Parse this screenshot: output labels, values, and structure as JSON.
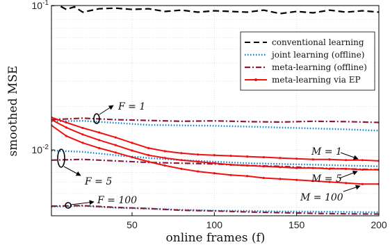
{
  "chart_data": {
    "type": "line",
    "xlabel": "online frames (f)",
    "ylabel": "smoothed MSE",
    "xlim": [
      1,
      200
    ],
    "ylim": [
      0.0035,
      0.1
    ],
    "yscale": "log",
    "grid": true,
    "x_ticks": [
      50,
      100,
      150,
      200
    ],
    "x_tick_labels": [
      "50",
      "100",
      "150",
      "200"
    ],
    "y_ticks": [
      0.01,
      0.1
    ],
    "y_tick_labels": [
      "10^-2",
      "10^-1"
    ],
    "legend_position": "top-right",
    "legend": [
      {
        "label": "conventional learning",
        "color": "#000000",
        "style": "dashed"
      },
      {
        "label": "joint learning (offline)",
        "color": "#1f77b4",
        "style": "dotted"
      },
      {
        "label": "meta-learning (offline)",
        "color": "#8b1a3a",
        "style": "dashdot"
      },
      {
        "label": "meta-learning via EP",
        "color": "#ee1111",
        "style": "solid-marker"
      }
    ],
    "series": [
      {
        "name": "conventional learning",
        "group": "all",
        "style": "dashed",
        "color": "#000000",
        "x": [
          1,
          5,
          10,
          15,
          20,
          30,
          40,
          50,
          60,
          70,
          80,
          90,
          100,
          110,
          120,
          130,
          140,
          150,
          160,
          170,
          180,
          190,
          200
        ],
        "y": [
          0.1,
          0.101,
          0.094,
          0.098,
          0.09,
          0.095,
          0.096,
          0.094,
          0.095,
          0.091,
          0.093,
          0.09,
          0.092,
          0.091,
          0.09,
          0.093,
          0.088,
          0.091,
          0.089,
          0.093,
          0.09,
          0.092,
          0.09
        ]
      },
      {
        "name": "joint learning (offline)",
        "group": "F = 1",
        "style": "dotted",
        "color": "#1f77b4",
        "x": [
          1,
          20,
          40,
          60,
          80,
          100,
          120,
          140,
          160,
          180,
          200
        ],
        "y": [
          0.0158,
          0.0159,
          0.0154,
          0.0149,
          0.0148,
          0.0147,
          0.0145,
          0.0143,
          0.0141,
          0.0139,
          0.0136
        ]
      },
      {
        "name": "meta-learning (offline)",
        "group": "F = 1",
        "style": "dashdot",
        "color": "#8b1a3a",
        "x": [
          1,
          20,
          40,
          60,
          80,
          100,
          120,
          140,
          160,
          180,
          200
        ],
        "y": [
          0.0162,
          0.0166,
          0.0162,
          0.016,
          0.0158,
          0.0159,
          0.0157,
          0.0156,
          0.0158,
          0.0157,
          0.0155
        ]
      },
      {
        "name": "joint learning (offline)",
        "group": "F = 5",
        "style": "dotted",
        "color": "#1f77b4",
        "x": [
          1,
          20,
          40,
          60,
          80,
          100,
          120,
          140,
          160,
          180,
          200
        ],
        "y": [
          0.0099,
          0.0097,
          0.0092,
          0.0088,
          0.0085,
          0.0083,
          0.0081,
          0.008,
          0.0079,
          0.0078,
          0.0077
        ]
      },
      {
        "name": "meta-learning (offline)",
        "group": "F = 5",
        "style": "dashdot",
        "color": "#8b1a3a",
        "x": [
          1,
          20,
          40,
          60,
          80,
          100,
          120,
          140,
          160,
          180,
          200
        ],
        "y": [
          0.0085,
          0.0086,
          0.0084,
          0.0082,
          0.0081,
          0.008,
          0.0078,
          0.0077,
          0.0075,
          0.0074,
          0.0073
        ]
      },
      {
        "name": "joint learning (offline)",
        "group": "F = 100",
        "style": "dotted",
        "color": "#1f77b4",
        "x": [
          1,
          20,
          40,
          60,
          80,
          100,
          120,
          140,
          160,
          180,
          200
        ],
        "y": [
          0.00405,
          0.0041,
          0.00398,
          0.00392,
          0.00385,
          0.0038,
          0.00378,
          0.00375,
          0.00374,
          0.00372,
          0.0037
        ]
      },
      {
        "name": "meta-learning (offline)",
        "group": "F = 100",
        "style": "dashdot",
        "color": "#8b1a3a",
        "x": [
          1,
          20,
          40,
          60,
          80,
          100,
          120,
          140,
          160,
          180,
          200
        ],
        "y": [
          0.00408,
          0.00412,
          0.004,
          0.00393,
          0.00382,
          0.00378,
          0.00372,
          0.00368,
          0.00364,
          0.00361,
          0.0036
        ]
      },
      {
        "name": "meta-learning via EP",
        "group": "M = 1",
        "style": "solid-marker",
        "color": "#ee1111",
        "x": [
          1,
          10,
          20,
          30,
          40,
          50,
          60,
          70,
          80,
          90,
          100,
          110,
          120,
          130,
          140,
          150,
          160,
          170,
          180,
          190,
          200
        ],
        "y": [
          0.0168,
          0.0155,
          0.0142,
          0.0132,
          0.0122,
          0.0112,
          0.0103,
          0.0098,
          0.0095,
          0.0093,
          0.0092,
          0.0091,
          0.009,
          0.0089,
          0.0088,
          0.0087,
          0.0086,
          0.0086,
          0.0085,
          0.0085,
          0.0084
        ]
      },
      {
        "name": "meta-learning via EP",
        "group": "M = 5",
        "style": "solid-marker",
        "color": "#ee1111",
        "x": [
          1,
          10,
          20,
          30,
          40,
          50,
          60,
          70,
          80,
          90,
          100,
          110,
          120,
          130,
          140,
          150,
          160,
          170,
          180,
          190,
          200
        ],
        "y": [
          0.0162,
          0.0143,
          0.0128,
          0.0117,
          0.0108,
          0.0099,
          0.0092,
          0.0088,
          0.0085,
          0.0083,
          0.0081,
          0.0079,
          0.0078,
          0.0077,
          0.0076,
          0.0075,
          0.0075,
          0.0074,
          0.0074,
          0.0073,
          0.0073
        ]
      },
      {
        "name": "meta-learning via EP",
        "group": "M = 100",
        "style": "solid-marker",
        "color": "#ee1111",
        "x": [
          1,
          10,
          20,
          30,
          40,
          50,
          60,
          70,
          80,
          90,
          100,
          110,
          120,
          130,
          140,
          150,
          160,
          170,
          180,
          190,
          200
        ],
        "y": [
          0.0148,
          0.0125,
          0.0112,
          0.0103,
          0.0096,
          0.0089,
          0.0083,
          0.0078,
          0.0074,
          0.0071,
          0.0069,
          0.0067,
          0.0066,
          0.0064,
          0.0063,
          0.0062,
          0.0061,
          0.006,
          0.0059,
          0.0058,
          0.0058
        ]
      }
    ],
    "annotations": [
      {
        "text": "F = 1"
      },
      {
        "text": "F = 5"
      },
      {
        "text": "F = 100"
      },
      {
        "text": "M = 1"
      },
      {
        "text": "M = 5"
      },
      {
        "text": "M = 100"
      }
    ]
  }
}
